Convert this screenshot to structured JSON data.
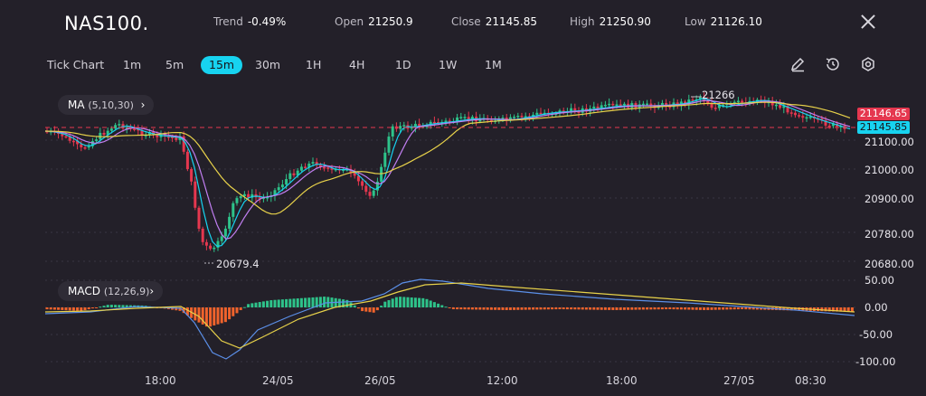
{
  "header": {
    "symbol": "NAS100.",
    "stats": [
      {
        "label": "Trend",
        "value": "-0.49%"
      },
      {
        "label": "Open",
        "value": "21250.9"
      },
      {
        "label": "Close",
        "value": "21145.85"
      },
      {
        "label": "High",
        "value": "21250.90"
      },
      {
        "label": "Low",
        "value": "21126.10"
      }
    ]
  },
  "toolbar": {
    "timeframes": [
      "Tick Chart",
      "1m",
      "5m",
      "15m",
      "30m",
      "1H",
      "4H",
      "1D",
      "1W",
      "1M"
    ],
    "active": "15m",
    "icons": [
      "pencil-icon",
      "clock-reset-icon",
      "settings-icon"
    ]
  },
  "main_chart": {
    "indicator_label": "MA",
    "indicator_params": "(5,10,30)",
    "y_ticks": [
      "21100.00",
      "21000.00",
      "20900.00",
      "20780.00",
      "20680.00"
    ],
    "price_tags": [
      "21146.65",
      "21145.85"
    ],
    "annotations": {
      "high": "21266",
      "low": "20679.4"
    }
  },
  "macd_chart": {
    "indicator_label": "MACD",
    "indicator_params": "(12,26,9)",
    "y_ticks": [
      "50.00",
      "0.00",
      "-50.00",
      "-100.00"
    ]
  },
  "x_axis": [
    "18:00",
    "24/05",
    "26/05",
    "12:00",
    "18:00",
    "27/05",
    "08:30"
  ],
  "colors": {
    "background": "#232029",
    "up": "#2ec38a",
    "down": "#e5374f",
    "accent": "#17d3f0",
    "ma5": "#17d3f0",
    "ma10": "#c07ef0",
    "ma30": "#e8d24a",
    "macd_line": "#5b8fe8",
    "signal_line": "#e8d24a",
    "hist_pos": "#2ec38a",
    "hist_neg": "#f0632c"
  }
}
